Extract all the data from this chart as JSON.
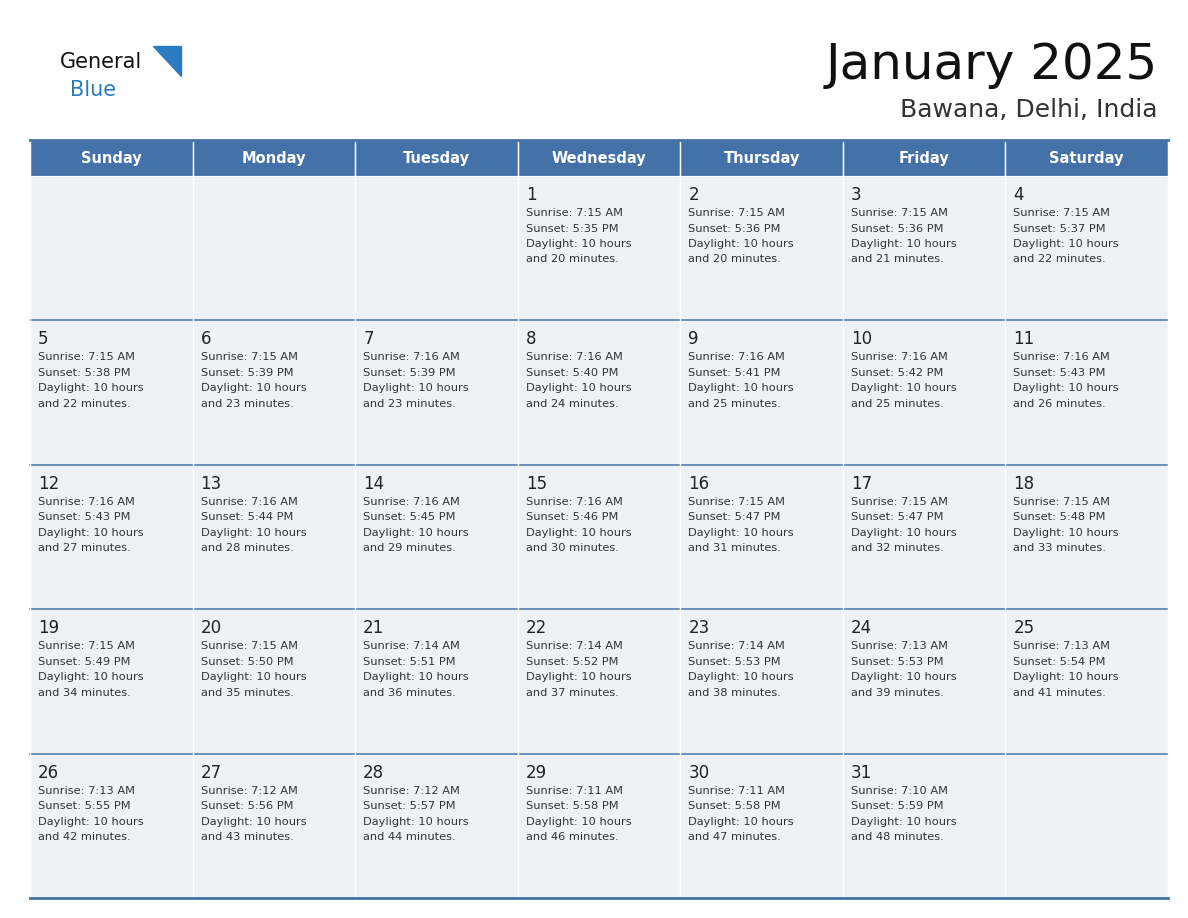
{
  "title": "January 2025",
  "subtitle": "Bawana, Delhi, India",
  "days_of_week": [
    "Sunday",
    "Monday",
    "Tuesday",
    "Wednesday",
    "Thursday",
    "Friday",
    "Saturday"
  ],
  "header_bg": "#4472a8",
  "header_text": "#ffffff",
  "cell_bg_odd": "#eef2f7",
  "cell_bg_even": "#ffffff",
  "border_color": "#4472a8",
  "row_border_color": "#5580b0",
  "day_number_color": "#222222",
  "cell_text_color": "#333333",
  "title_color": "#111111",
  "subtitle_color": "#333333",
  "logo_general_color": "#111111",
  "logo_blue_color": "#2a7bbf",
  "logo_triangle_color": "#2a7bbf",
  "calendar_data": [
    [
      {
        "day": null,
        "sunrise": null,
        "sunset": null,
        "daylight_hours": null,
        "daylight_mins": null
      },
      {
        "day": null,
        "sunrise": null,
        "sunset": null,
        "daylight_hours": null,
        "daylight_mins": null
      },
      {
        "day": null,
        "sunrise": null,
        "sunset": null,
        "daylight_hours": null,
        "daylight_mins": null
      },
      {
        "day": 1,
        "sunrise": "7:15 AM",
        "sunset": "5:35 PM",
        "daylight_hours": "10 hours",
        "daylight_mins": "and 20 minutes."
      },
      {
        "day": 2,
        "sunrise": "7:15 AM",
        "sunset": "5:36 PM",
        "daylight_hours": "10 hours",
        "daylight_mins": "and 20 minutes."
      },
      {
        "day": 3,
        "sunrise": "7:15 AM",
        "sunset": "5:36 PM",
        "daylight_hours": "10 hours",
        "daylight_mins": "and 21 minutes."
      },
      {
        "day": 4,
        "sunrise": "7:15 AM",
        "sunset": "5:37 PM",
        "daylight_hours": "10 hours",
        "daylight_mins": "and 22 minutes."
      }
    ],
    [
      {
        "day": 5,
        "sunrise": "7:15 AM",
        "sunset": "5:38 PM",
        "daylight_hours": "10 hours",
        "daylight_mins": "and 22 minutes."
      },
      {
        "day": 6,
        "sunrise": "7:15 AM",
        "sunset": "5:39 PM",
        "daylight_hours": "10 hours",
        "daylight_mins": "and 23 minutes."
      },
      {
        "day": 7,
        "sunrise": "7:16 AM",
        "sunset": "5:39 PM",
        "daylight_hours": "10 hours",
        "daylight_mins": "and 23 minutes."
      },
      {
        "day": 8,
        "sunrise": "7:16 AM",
        "sunset": "5:40 PM",
        "daylight_hours": "10 hours",
        "daylight_mins": "and 24 minutes."
      },
      {
        "day": 9,
        "sunrise": "7:16 AM",
        "sunset": "5:41 PM",
        "daylight_hours": "10 hours",
        "daylight_mins": "and 25 minutes."
      },
      {
        "day": 10,
        "sunrise": "7:16 AM",
        "sunset": "5:42 PM",
        "daylight_hours": "10 hours",
        "daylight_mins": "and 25 minutes."
      },
      {
        "day": 11,
        "sunrise": "7:16 AM",
        "sunset": "5:43 PM",
        "daylight_hours": "10 hours",
        "daylight_mins": "and 26 minutes."
      }
    ],
    [
      {
        "day": 12,
        "sunrise": "7:16 AM",
        "sunset": "5:43 PM",
        "daylight_hours": "10 hours",
        "daylight_mins": "and 27 minutes."
      },
      {
        "day": 13,
        "sunrise": "7:16 AM",
        "sunset": "5:44 PM",
        "daylight_hours": "10 hours",
        "daylight_mins": "and 28 minutes."
      },
      {
        "day": 14,
        "sunrise": "7:16 AM",
        "sunset": "5:45 PM",
        "daylight_hours": "10 hours",
        "daylight_mins": "and 29 minutes."
      },
      {
        "day": 15,
        "sunrise": "7:16 AM",
        "sunset": "5:46 PM",
        "daylight_hours": "10 hours",
        "daylight_mins": "and 30 minutes."
      },
      {
        "day": 16,
        "sunrise": "7:15 AM",
        "sunset": "5:47 PM",
        "daylight_hours": "10 hours",
        "daylight_mins": "and 31 minutes."
      },
      {
        "day": 17,
        "sunrise": "7:15 AM",
        "sunset": "5:47 PM",
        "daylight_hours": "10 hours",
        "daylight_mins": "and 32 minutes."
      },
      {
        "day": 18,
        "sunrise": "7:15 AM",
        "sunset": "5:48 PM",
        "daylight_hours": "10 hours",
        "daylight_mins": "and 33 minutes."
      }
    ],
    [
      {
        "day": 19,
        "sunrise": "7:15 AM",
        "sunset": "5:49 PM",
        "daylight_hours": "10 hours",
        "daylight_mins": "and 34 minutes."
      },
      {
        "day": 20,
        "sunrise": "7:15 AM",
        "sunset": "5:50 PM",
        "daylight_hours": "10 hours",
        "daylight_mins": "and 35 minutes."
      },
      {
        "day": 21,
        "sunrise": "7:14 AM",
        "sunset": "5:51 PM",
        "daylight_hours": "10 hours",
        "daylight_mins": "and 36 minutes."
      },
      {
        "day": 22,
        "sunrise": "7:14 AM",
        "sunset": "5:52 PM",
        "daylight_hours": "10 hours",
        "daylight_mins": "and 37 minutes."
      },
      {
        "day": 23,
        "sunrise": "7:14 AM",
        "sunset": "5:53 PM",
        "daylight_hours": "10 hours",
        "daylight_mins": "and 38 minutes."
      },
      {
        "day": 24,
        "sunrise": "7:13 AM",
        "sunset": "5:53 PM",
        "daylight_hours": "10 hours",
        "daylight_mins": "and 39 minutes."
      },
      {
        "day": 25,
        "sunrise": "7:13 AM",
        "sunset": "5:54 PM",
        "daylight_hours": "10 hours",
        "daylight_mins": "and 41 minutes."
      }
    ],
    [
      {
        "day": 26,
        "sunrise": "7:13 AM",
        "sunset": "5:55 PM",
        "daylight_hours": "10 hours",
        "daylight_mins": "and 42 minutes."
      },
      {
        "day": 27,
        "sunrise": "7:12 AM",
        "sunset": "5:56 PM",
        "daylight_hours": "10 hours",
        "daylight_mins": "and 43 minutes."
      },
      {
        "day": 28,
        "sunrise": "7:12 AM",
        "sunset": "5:57 PM",
        "daylight_hours": "10 hours",
        "daylight_mins": "and 44 minutes."
      },
      {
        "day": 29,
        "sunrise": "7:11 AM",
        "sunset": "5:58 PM",
        "daylight_hours": "10 hours",
        "daylight_mins": "and 46 minutes."
      },
      {
        "day": 30,
        "sunrise": "7:11 AM",
        "sunset": "5:58 PM",
        "daylight_hours": "10 hours",
        "daylight_mins": "and 47 minutes."
      },
      {
        "day": 31,
        "sunrise": "7:10 AM",
        "sunset": "5:59 PM",
        "daylight_hours": "10 hours",
        "daylight_mins": "and 48 minutes."
      },
      {
        "day": null,
        "sunrise": null,
        "sunset": null,
        "daylight_hours": null,
        "daylight_mins": null
      }
    ]
  ]
}
